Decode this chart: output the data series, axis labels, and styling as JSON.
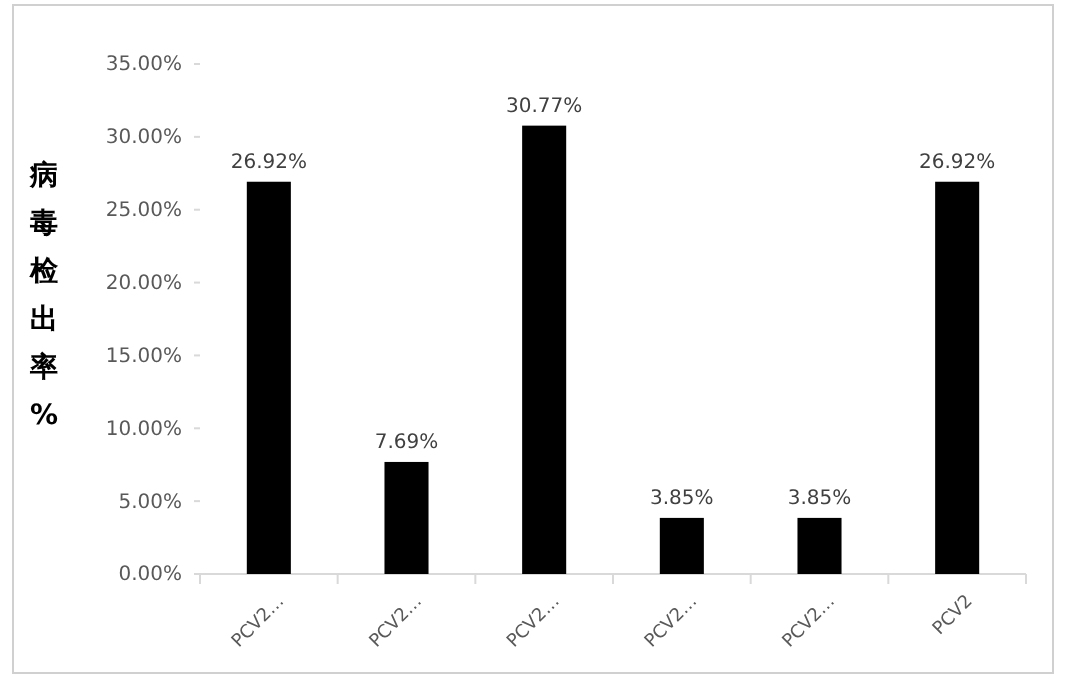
{
  "chart_data": {
    "type": "bar",
    "ylabel": "病毒检出率%",
    "categories": [
      "PCV2…",
      "PCV2…",
      "PCV2…",
      "PCV2…",
      "PCV2…",
      "PCV2"
    ],
    "values": [
      26.92,
      7.69,
      30.77,
      3.85,
      3.85,
      26.92
    ],
    "value_labels": [
      "26.92%",
      "7.69%",
      "30.77%",
      "3.85%",
      "3.85%",
      "26.92%"
    ],
    "color": "#000000",
    "ylim": [
      0,
      35
    ],
    "yticks": [
      {
        "value": 0,
        "label": "0.00%"
      },
      {
        "value": 5,
        "label": "5.00%"
      },
      {
        "value": 10,
        "label": "10.00%"
      },
      {
        "value": 15,
        "label": "15.00%"
      },
      {
        "value": 20,
        "label": "20.00%"
      },
      {
        "value": 25,
        "label": "25.00%"
      },
      {
        "value": 30,
        "label": "30.00%"
      },
      {
        "value": 35,
        "label": "35.00%"
      }
    ],
    "grid": false
  }
}
